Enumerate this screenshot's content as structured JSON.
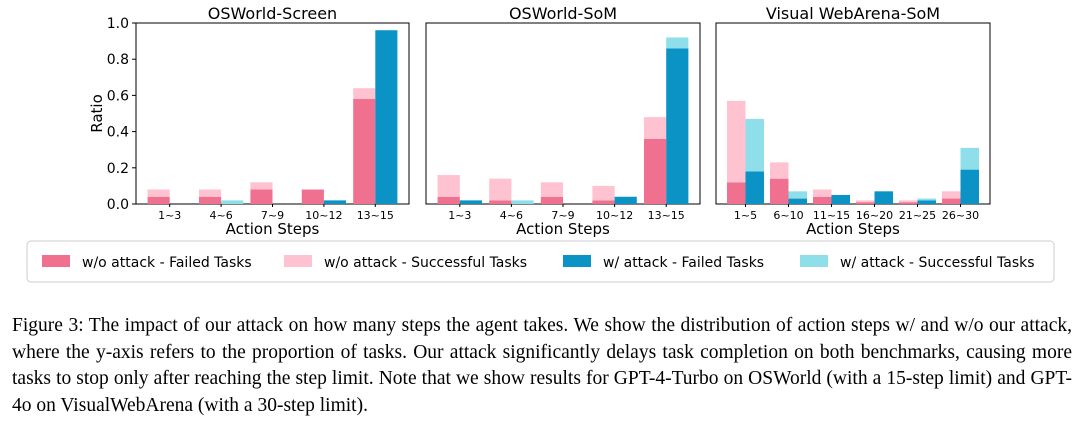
{
  "chart_data": {
    "type": "bar",
    "ylabel": "Ratio",
    "ylim": [
      0,
      1.0
    ],
    "yticks": [
      "0.0",
      "0.2",
      "0.4",
      "0.6",
      "0.8",
      "1.0"
    ],
    "legend": {
      "placement": "bottom",
      "entries": [
        {
          "key": "wo_failed",
          "label": "w/o attack - Failed Tasks",
          "color": "#f0708f"
        },
        {
          "key": "wo_success",
          "label": "w/o attack - Successful Tasks",
          "color": "#ffc2d1"
        },
        {
          "key": "w_failed",
          "label": "w/ attack - Failed Tasks",
          "color": "#0a93c4"
        },
        {
          "key": "w_success",
          "label": "w/ attack - Successful Tasks",
          "color": "#8fdfea"
        }
      ]
    },
    "panels": [
      {
        "title": "OSWorld-Screen",
        "xlabel": "Action Steps",
        "categories": [
          "1~3",
          "4~6",
          "7~9",
          "10~12",
          "13~15"
        ],
        "wo_failed": [
          0.04,
          0.04,
          0.08,
          0.08,
          0.58
        ],
        "wo_success": [
          0.04,
          0.04,
          0.04,
          0.0,
          0.06
        ],
        "w_failed": [
          0.0,
          0.0,
          0.0,
          0.02,
          0.96
        ],
        "w_success": [
          0.0,
          0.02,
          0.0,
          0.0,
          0.0
        ]
      },
      {
        "title": "OSWorld-SoM",
        "xlabel": "Action Steps",
        "categories": [
          "1~3",
          "4~6",
          "7~9",
          "10~12",
          "13~15"
        ],
        "wo_failed": [
          0.04,
          0.02,
          0.04,
          0.02,
          0.36
        ],
        "wo_success": [
          0.12,
          0.12,
          0.08,
          0.08,
          0.12
        ],
        "w_failed": [
          0.02,
          0.0,
          0.0,
          0.04,
          0.86
        ],
        "w_success": [
          0.0,
          0.02,
          0.0,
          0.0,
          0.06
        ]
      },
      {
        "title": "Visual WebArena-SoM",
        "xlabel": "Action Steps",
        "categories": [
          "1~5",
          "6~10",
          "11~15",
          "16~20",
          "21~25",
          "26~30"
        ],
        "wo_failed": [
          0.12,
          0.14,
          0.04,
          0.01,
          0.01,
          0.03
        ],
        "wo_success": [
          0.45,
          0.09,
          0.04,
          0.01,
          0.01,
          0.04
        ],
        "w_failed": [
          0.18,
          0.03,
          0.05,
          0.07,
          0.02,
          0.19
        ],
        "w_success": [
          0.29,
          0.04,
          0.0,
          0.0,
          0.01,
          0.12
        ]
      }
    ]
  },
  "caption": "Figure 3:  The impact of our attack on how many steps the agent takes. We show the distribution of action steps w/ and w/o our attack, where the y-axis refers to the proportion of tasks. Our attack significantly delays task completion on both benchmarks, causing more tasks to stop only after reaching the step limit. Note that we show results for GPT-4-Turbo on OSWorld (with a 15-step limit) and GPT-4o on VisualWebArena (with a 30-step limit)."
}
